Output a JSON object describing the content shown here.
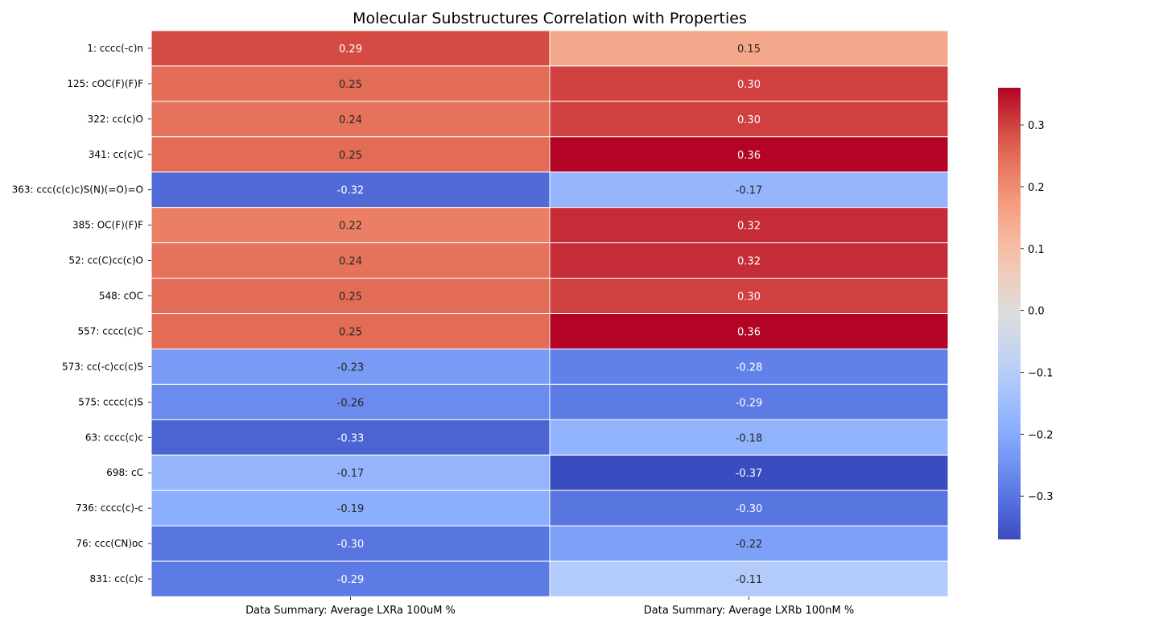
{
  "chart_data": {
    "type": "heatmap",
    "title": "Molecular Substructures Correlation with Properties",
    "columns": [
      "Data Summary: Average LXRa 100uM %",
      "Data Summary: Average LXRb 100nM %"
    ],
    "rows": [
      "1: cccc(-c)n",
      "125: cOC(F)(F)F",
      "322: cc(c)O",
      "341: cc(c)C",
      "363: ccc(c(c)c)S(N)(=O)=O",
      "385: OC(F)(F)F",
      "52: cc(C)cc(c)O",
      "548: cOC",
      "557: cccc(c)C",
      "573: cc(-c)cc(c)S",
      "575: cccc(c)S",
      "63: cccc(c)c",
      "698: cC",
      "736: cccc(c)-c",
      "76: ccc(CN)oc",
      "831: cc(c)c"
    ],
    "values": [
      [
        0.29,
        0.15
      ],
      [
        0.25,
        0.3
      ],
      [
        0.24,
        0.3
      ],
      [
        0.25,
        0.36
      ],
      [
        -0.32,
        -0.17
      ],
      [
        0.22,
        0.32
      ],
      [
        0.24,
        0.32
      ],
      [
        0.25,
        0.3
      ],
      [
        0.25,
        0.36
      ],
      [
        -0.23,
        -0.28
      ],
      [
        -0.26,
        -0.29
      ],
      [
        -0.33,
        -0.18
      ],
      [
        -0.17,
        -0.37
      ],
      [
        -0.19,
        -0.3
      ],
      [
        -0.3,
        -0.22
      ],
      [
        -0.29,
        -0.11
      ]
    ],
    "value_labels": [
      [
        "0.29",
        "0.15"
      ],
      [
        "0.25",
        "0.30"
      ],
      [
        "0.24",
        "0.30"
      ],
      [
        "0.25",
        "0.36"
      ],
      [
        "-0.32",
        "-0.17"
      ],
      [
        "0.22",
        "0.32"
      ],
      [
        "0.24",
        "0.32"
      ],
      [
        "0.25",
        "0.30"
      ],
      [
        "0.25",
        "0.36"
      ],
      [
        "-0.23",
        "-0.28"
      ],
      [
        "-0.26",
        "-0.29"
      ],
      [
        "-0.33",
        "-0.18"
      ],
      [
        "-0.17",
        "-0.37"
      ],
      [
        "-0.19",
        "-0.30"
      ],
      [
        "-0.30",
        "-0.22"
      ],
      [
        "-0.29",
        "-0.11"
      ]
    ],
    "colormap": "coolwarm",
    "vmin": -0.37,
    "vmax": 0.36,
    "colorbar": {
      "position": "right",
      "ticks": [
        -0.3,
        -0.2,
        -0.1,
        0.0,
        0.1,
        0.2,
        0.3
      ],
      "tick_labels": [
        "−0.3",
        "−0.2",
        "−0.1",
        "0.0",
        "0.1",
        "0.2",
        "0.3"
      ]
    },
    "cell_separator_color": "#ffffff"
  }
}
